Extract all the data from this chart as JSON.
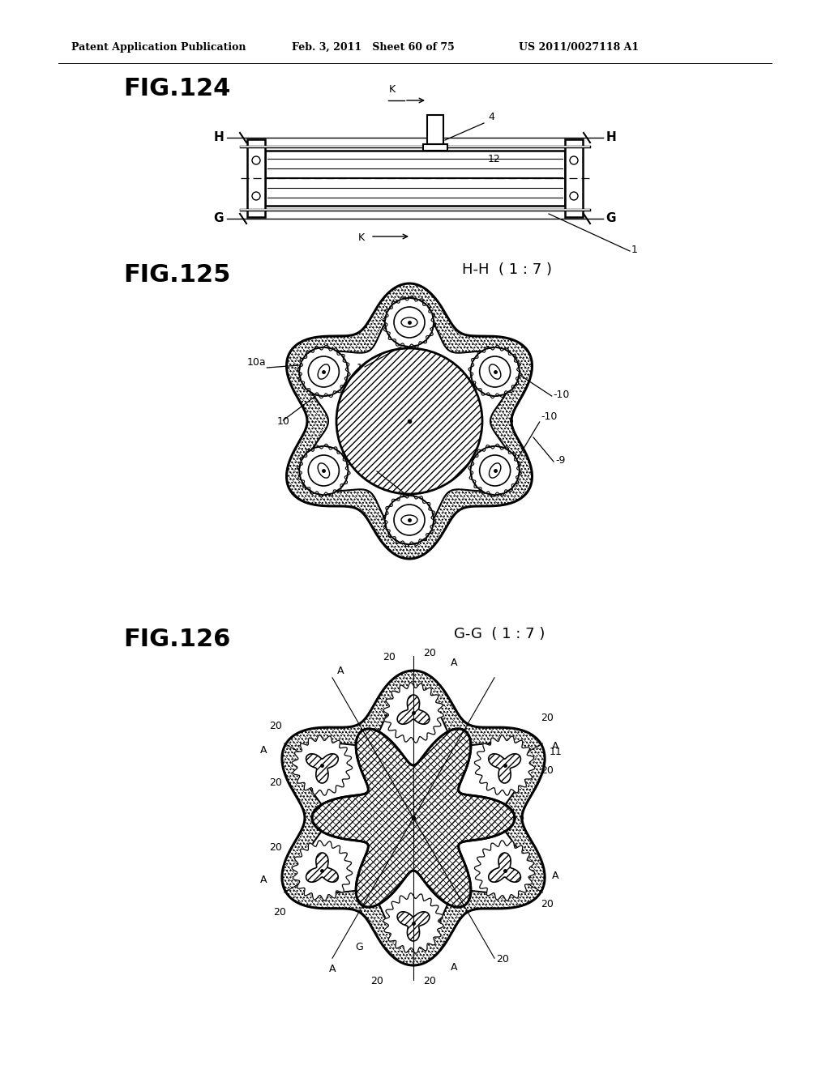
{
  "bg_color": "#ffffff",
  "header_left": "Patent Application Publication",
  "header_mid": "Feb. 3, 2011   Sheet 60 of 75",
  "header_right": "US 2011/0027118 A1",
  "fig124_label": "FIG.124",
  "fig125_label": "FIG.125",
  "fig126_label": "FIG.126",
  "hh_label": "H-H  ( 1 : 7 )",
  "gg_label": "G-G  ( 1 : 7 )",
  "line_color": "#000000"
}
